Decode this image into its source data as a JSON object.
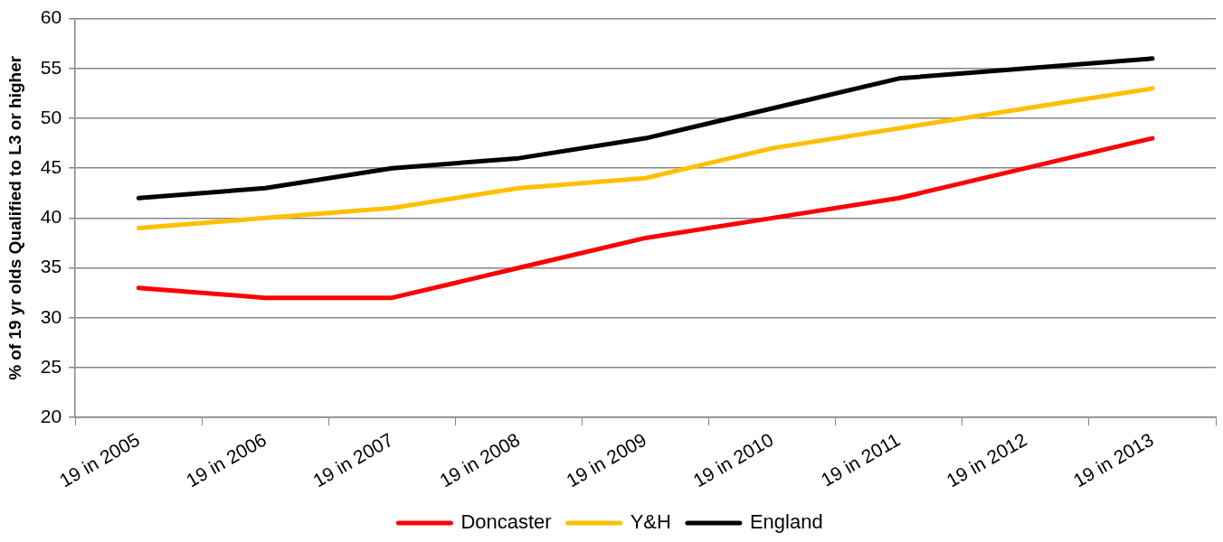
{
  "chart_data": {
    "type": "line",
    "ylabel": "% of 19 yr olds Qualified to L3 or higher",
    "categories": [
      "19 in 2005",
      "19 in 2006",
      "19 in 2007",
      "19 in 2008",
      "19 in 2009",
      "19 in 2010",
      "19 in 2011",
      "19 in 2012",
      "19 in 2013"
    ],
    "series": [
      {
        "name": "Doncaster",
        "color": "#ff0000",
        "values": [
          33,
          32,
          32,
          35,
          38,
          40,
          42,
          45,
          48
        ]
      },
      {
        "name": "Y&H",
        "color": "#ffc000",
        "values": [
          39,
          40,
          41,
          43,
          44,
          47,
          49,
          51,
          53
        ]
      },
      {
        "name": "England",
        "color": "#000000",
        "values": [
          42,
          43,
          45,
          46,
          48,
          51,
          54,
          55,
          56
        ]
      }
    ],
    "ylim": [
      20,
      60
    ],
    "yticks": [
      20,
      25,
      30,
      35,
      40,
      45,
      50,
      55,
      60
    ],
    "grid": "y",
    "legend": "bottom"
  }
}
